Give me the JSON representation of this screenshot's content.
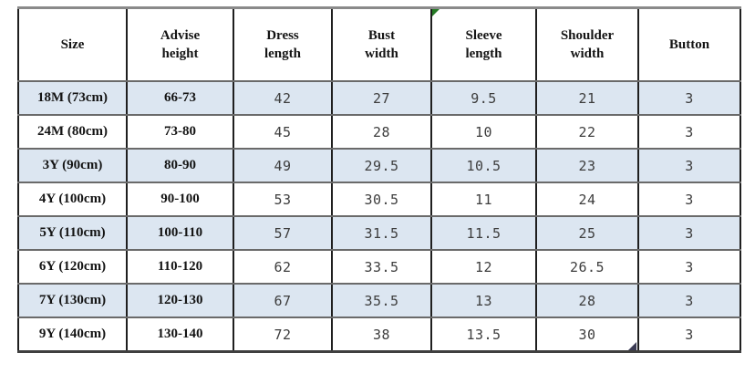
{
  "chart_data": {
    "type": "table",
    "columns": [
      "Size",
      "Advise height",
      "Dress length",
      "Bust width",
      "Sleeve length",
      "Shoulder width",
      "Button"
    ],
    "rows": [
      [
        "18M (73cm)",
        "66-73",
        "42",
        "27",
        "9.5",
        "21",
        "3"
      ],
      [
        "24M (80cm)",
        "73-80",
        "45",
        "28",
        "10",
        "22",
        "3"
      ],
      [
        "3Y (90cm)",
        "80-90",
        "49",
        "29.5",
        "10.5",
        "23",
        "3"
      ],
      [
        "4Y (100cm)",
        "90-100",
        "53",
        "30.5",
        "11",
        "24",
        "3"
      ],
      [
        "5Y (110cm)",
        "100-110",
        "57",
        "31.5",
        "11.5",
        "25",
        "3"
      ],
      [
        "6Y (120cm)",
        "110-120",
        "62",
        "33.5",
        "12",
        "26.5",
        "3"
      ],
      [
        "7Y (130cm)",
        "120-130",
        "67",
        "35.5",
        "13",
        "28",
        "3"
      ],
      [
        "9Y (140cm)",
        "130-140",
        "72",
        "38",
        "13.5",
        "30",
        "3"
      ]
    ],
    "layout": {
      "zebra_shaded_rows": "odd",
      "grid": true,
      "header_bold": true,
      "bold_columns": [
        "Size",
        "Advise height"
      ]
    }
  },
  "colors": {
    "row_shade": "#dce6f1",
    "row_plain": "#ffffff",
    "grid_vertical": "#1f1f1f",
    "grid_horizontal": "#6a6a6a",
    "outer_top_border": "#8a8a8a",
    "header_text": "#141414",
    "value_text": "#3d3d3d",
    "cell_flag_green": "#267b26",
    "corner_handle": "#3c3c55"
  },
  "icons": {
    "cell_flag": "green-triangle",
    "corner_handle": "dark-triangle"
  }
}
